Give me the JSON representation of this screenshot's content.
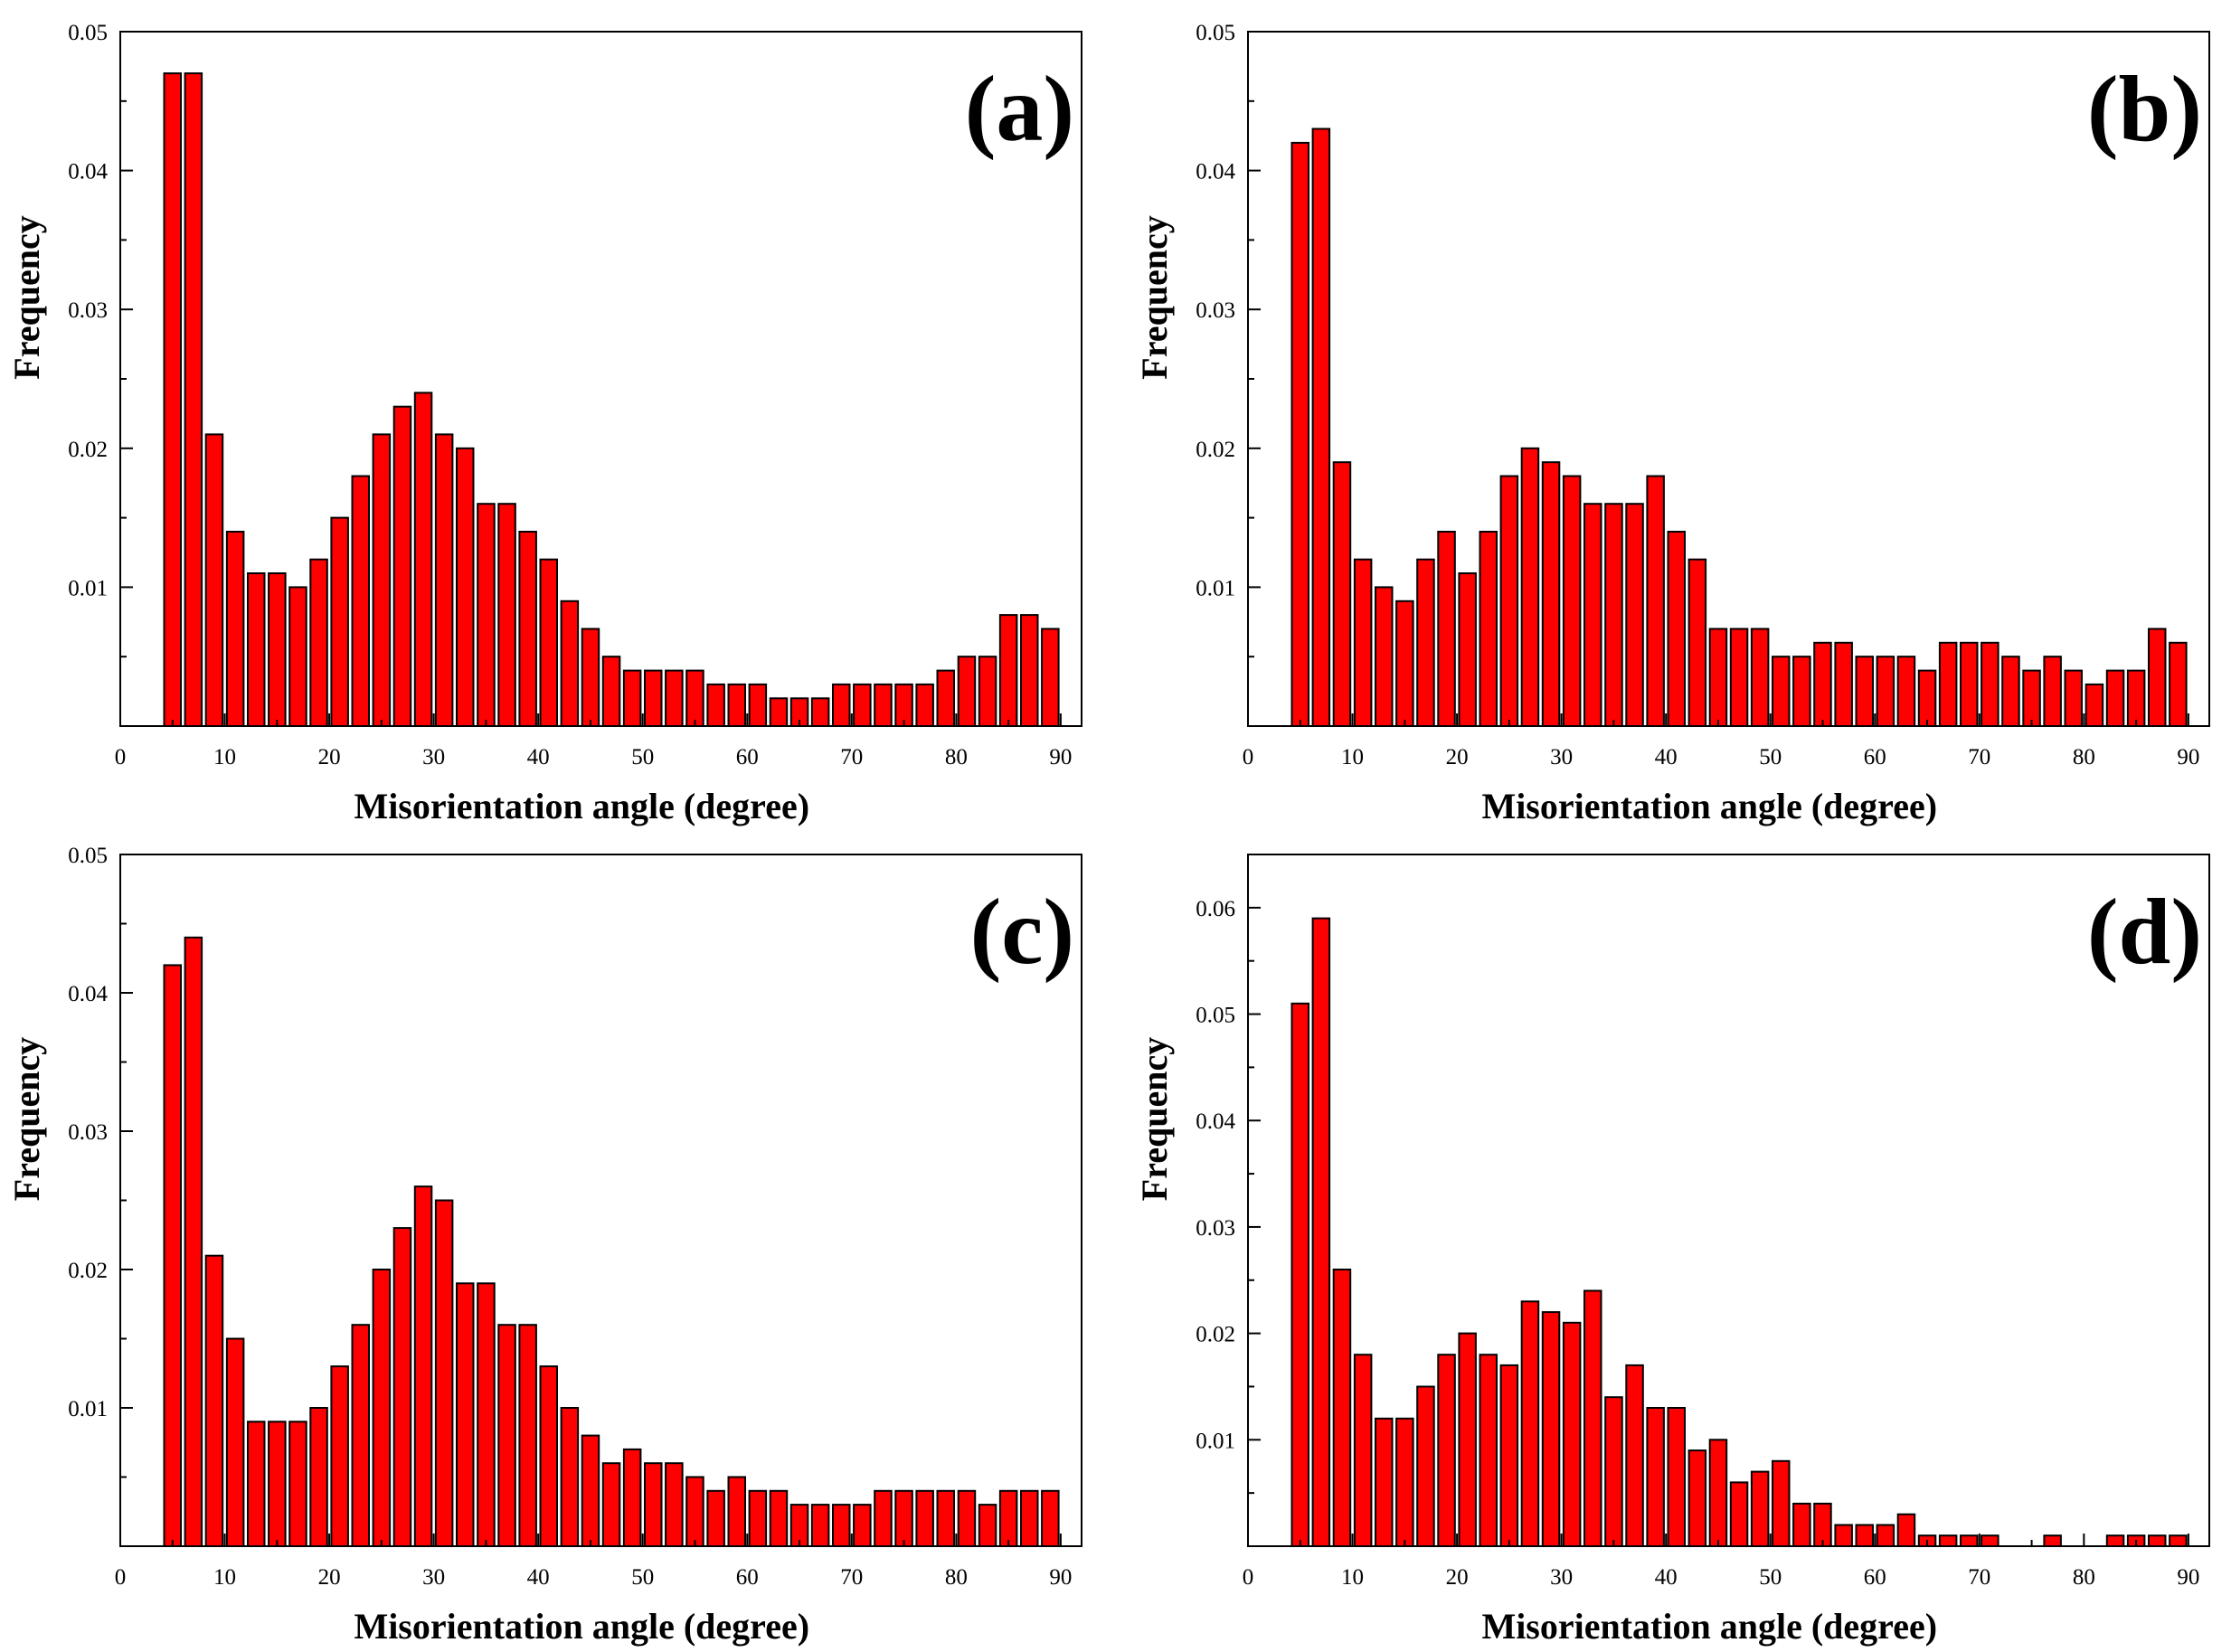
{
  "bar_color": "#ff0000",
  "chart_data": [
    {
      "type": "bar",
      "panel_label": "(a)",
      "xlabel": "Misorientation angle (degree)",
      "ylabel": "Frequency",
      "xlim": [
        0,
        92
      ],
      "ylim": [
        0,
        0.05
      ],
      "x_ticks": [
        "0",
        "10",
        "20",
        "30",
        "40",
        "50",
        "60",
        "70",
        "80",
        "90"
      ],
      "y_ticks": [
        "0.01",
        "0.02",
        "0.03",
        "0.04",
        "0.05"
      ],
      "bin_width": 2,
      "x": [
        5,
        7,
        9,
        11,
        13,
        15,
        17,
        19,
        21,
        23,
        25,
        27,
        29,
        31,
        33,
        35,
        37,
        39,
        41,
        43,
        45,
        47,
        49,
        51,
        53,
        55,
        57,
        59,
        61,
        63,
        65,
        67,
        69,
        71,
        73,
        75,
        77,
        79,
        81,
        83,
        85,
        87,
        89
      ],
      "values": [
        0.047,
        0.047,
        0.021,
        0.014,
        0.011,
        0.011,
        0.01,
        0.012,
        0.015,
        0.018,
        0.021,
        0.023,
        0.024,
        0.021,
        0.02,
        0.016,
        0.016,
        0.014,
        0.012,
        0.009,
        0.007,
        0.005,
        0.004,
        0.004,
        0.004,
        0.004,
        0.003,
        0.003,
        0.003,
        0.002,
        0.002,
        0.002,
        0.003,
        0.003,
        0.003,
        0.003,
        0.003,
        0.004,
        0.005,
        0.005,
        0.008,
        0.008,
        0.007
      ]
    },
    {
      "type": "bar",
      "panel_label": "(b)",
      "xlabel": "Misorientation angle (degree)",
      "ylabel": "Frequency",
      "xlim": [
        0,
        92
      ],
      "ylim": [
        0,
        0.05
      ],
      "x_ticks": [
        "0",
        "10",
        "20",
        "30",
        "40",
        "50",
        "60",
        "70",
        "80",
        "90"
      ],
      "y_ticks": [
        "0.01",
        "0.02",
        "0.03",
        "0.04",
        "0.05"
      ],
      "bin_width": 2,
      "x": [
        5,
        7,
        9,
        11,
        13,
        15,
        17,
        19,
        21,
        23,
        25,
        27,
        29,
        31,
        33,
        35,
        37,
        39,
        41,
        43,
        45,
        47,
        49,
        51,
        53,
        55,
        57,
        59,
        61,
        63,
        65,
        67,
        69,
        71,
        73,
        75,
        77,
        79,
        81,
        83,
        85,
        87,
        89
      ],
      "values": [
        0.042,
        0.043,
        0.019,
        0.012,
        0.01,
        0.009,
        0.012,
        0.014,
        0.011,
        0.014,
        0.018,
        0.02,
        0.019,
        0.018,
        0.016,
        0.016,
        0.016,
        0.018,
        0.014,
        0.012,
        0.007,
        0.007,
        0.007,
        0.005,
        0.005,
        0.006,
        0.006,
        0.005,
        0.005,
        0.005,
        0.004,
        0.006,
        0.006,
        0.006,
        0.005,
        0.004,
        0.005,
        0.004,
        0.003,
        0.004,
        0.004,
        0.007,
        0.006
      ]
    },
    {
      "type": "bar",
      "panel_label": "(c)",
      "xlabel": "Misorientation angle (degree)",
      "ylabel": "Frequency",
      "xlim": [
        0,
        92
      ],
      "ylim": [
        0,
        0.05
      ],
      "x_ticks": [
        "0",
        "10",
        "20",
        "30",
        "40",
        "50",
        "60",
        "70",
        "80",
        "90"
      ],
      "y_ticks": [
        "0.01",
        "0.02",
        "0.03",
        "0.04",
        "0.05"
      ],
      "bin_width": 2,
      "x": [
        5,
        7,
        9,
        11,
        13,
        15,
        17,
        19,
        21,
        23,
        25,
        27,
        29,
        31,
        33,
        35,
        37,
        39,
        41,
        43,
        45,
        47,
        49,
        51,
        53,
        55,
        57,
        59,
        61,
        63,
        65,
        67,
        69,
        71,
        73,
        75,
        77,
        79,
        81,
        83,
        85,
        87,
        89
      ],
      "values": [
        0.042,
        0.044,
        0.021,
        0.015,
        0.009,
        0.009,
        0.009,
        0.01,
        0.013,
        0.016,
        0.02,
        0.023,
        0.026,
        0.025,
        0.019,
        0.019,
        0.016,
        0.016,
        0.013,
        0.01,
        0.008,
        0.006,
        0.007,
        0.006,
        0.006,
        0.005,
        0.004,
        0.005,
        0.004,
        0.004,
        0.003,
        0.003,
        0.003,
        0.003,
        0.004,
        0.004,
        0.004,
        0.004,
        0.004,
        0.003,
        0.004,
        0.004,
        0.004
      ]
    },
    {
      "type": "bar",
      "panel_label": "(d)",
      "xlabel": "Misorientation angle (degree)",
      "ylabel": "Frequency",
      "xlim": [
        0,
        92
      ],
      "ylim": [
        0,
        0.065
      ],
      "x_ticks": [
        "0",
        "10",
        "20",
        "30",
        "40",
        "50",
        "60",
        "70",
        "80",
        "90"
      ],
      "y_ticks": [
        "0.01",
        "0.02",
        "0.03",
        "0.04",
        "0.05",
        "0.06"
      ],
      "bin_width": 2,
      "x": [
        5,
        7,
        9,
        11,
        13,
        15,
        17,
        19,
        21,
        23,
        25,
        27,
        29,
        31,
        33,
        35,
        37,
        39,
        41,
        43,
        45,
        47,
        49,
        51,
        53,
        55,
        57,
        59,
        61,
        63,
        65,
        67,
        69,
        71,
        73,
        75,
        77,
        79,
        81,
        83,
        85,
        87,
        89
      ],
      "values": [
        0.051,
        0.059,
        0.026,
        0.018,
        0.012,
        0.012,
        0.015,
        0.018,
        0.02,
        0.018,
        0.017,
        0.023,
        0.022,
        0.021,
        0.024,
        0.014,
        0.017,
        0.013,
        0.013,
        0.009,
        0.01,
        0.006,
        0.007,
        0.008,
        0.004,
        0.004,
        0.002,
        0.002,
        0.002,
        0.003,
        0.001,
        0.001,
        0.001,
        0.001,
        0,
        0,
        0.001,
        0,
        0,
        0.001,
        0.001,
        0.001,
        0.001
      ]
    }
  ]
}
